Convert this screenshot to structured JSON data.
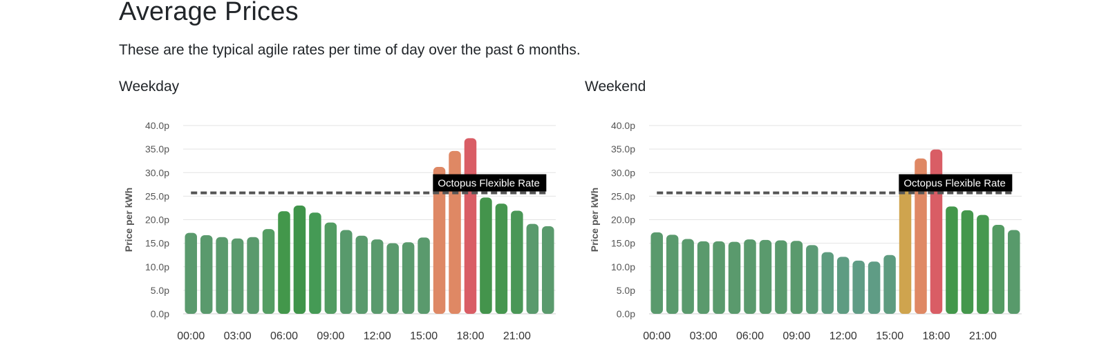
{
  "page": {
    "title": "Average Prices",
    "subtitle": "These are the typical agile rates per time of day over the past 6 months."
  },
  "chart_data": [
    {
      "type": "bar",
      "title": "Weekday",
      "ylabel": "Price per kWh",
      "ylim": [
        0,
        40
      ],
      "yticks": [
        "0.0p",
        "5.0p",
        "10.0p",
        "15.0p",
        "20.0p",
        "25.0p",
        "30.0p",
        "35.0p",
        "40.0p"
      ],
      "xticks": [
        "00:00",
        "03:00",
        "06:00",
        "09:00",
        "12:00",
        "15:00",
        "18:00",
        "21:00"
      ],
      "categories": [
        "00:00",
        "01:00",
        "02:00",
        "03:00",
        "04:00",
        "05:00",
        "06:00",
        "07:00",
        "08:00",
        "09:00",
        "10:00",
        "11:00",
        "12:00",
        "13:00",
        "14:00",
        "15:00",
        "16:00",
        "17:00",
        "18:00",
        "19:00",
        "20:00",
        "21:00",
        "22:00",
        "23:00"
      ],
      "values": [
        17.2,
        16.7,
        16.3,
        16.0,
        16.3,
        18.0,
        21.8,
        23.0,
        21.5,
        19.4,
        17.8,
        16.6,
        15.8,
        15.0,
        15.2,
        16.2,
        31.2,
        34.6,
        37.3,
        24.7,
        23.4,
        21.9,
        19.1,
        18.6
      ],
      "colors": [
        "#5a9a6d",
        "#5a9a6d",
        "#5a9a6d",
        "#5a9a6d",
        "#5a9a6d",
        "#549d63",
        "#43974b",
        "#3f944a",
        "#459a55",
        "#529c62",
        "#589a6c",
        "#5a9a6d",
        "#5a9a6d",
        "#5a9a6d",
        "#5a9a6d",
        "#5a9a6d",
        "#de8865",
        "#df8864",
        "#d95d65",
        "#44944c",
        "#46964f",
        "#4a9757",
        "#5a9a6d",
        "#5a9a6d"
      ],
      "reference_line": {
        "label": "Octopus Flexible Rate",
        "value": 25.7,
        "color": "#555555"
      }
    },
    {
      "type": "bar",
      "title": "Weekend",
      "ylabel": "Price per kWh",
      "ylim": [
        0,
        40
      ],
      "yticks": [
        "0.0p",
        "5.0p",
        "10.0p",
        "15.0p",
        "20.0p",
        "25.0p",
        "30.0p",
        "35.0p",
        "40.0p"
      ],
      "xticks": [
        "00:00",
        "03:00",
        "06:00",
        "09:00",
        "12:00",
        "15:00",
        "18:00",
        "21:00"
      ],
      "categories": [
        "00:00",
        "01:00",
        "02:00",
        "03:00",
        "04:00",
        "05:00",
        "06:00",
        "07:00",
        "08:00",
        "09:00",
        "10:00",
        "11:00",
        "12:00",
        "13:00",
        "14:00",
        "15:00",
        "16:00",
        "17:00",
        "18:00",
        "19:00",
        "20:00",
        "21:00",
        "22:00",
        "23:00"
      ],
      "values": [
        17.3,
        16.8,
        15.9,
        15.4,
        15.4,
        15.3,
        15.8,
        15.7,
        15.6,
        15.5,
        14.6,
        13.1,
        12.1,
        11.3,
        11.1,
        12.5,
        27.8,
        33.0,
        34.9,
        22.8,
        22.0,
        21.0,
        18.9,
        17.8
      ],
      "colors": [
        "#5a9a6d",
        "#5a9a6d",
        "#5a9a6d",
        "#5a9a6d",
        "#5a9a6d",
        "#5a9a6d",
        "#5a9a6d",
        "#5a9a6d",
        "#5a9a6d",
        "#5a9a6d",
        "#5c9b76",
        "#5e9c7f",
        "#5e9c82",
        "#5f9c85",
        "#5f9c85",
        "#5e9c80",
        "#cfa44e",
        "#df8864",
        "#d95d65",
        "#43974b",
        "#44974c",
        "#46984f",
        "#549b63",
        "#589a6b"
      ],
      "reference_line": {
        "label": "Octopus Flexible Rate",
        "value": 25.7,
        "color": "#555555"
      }
    }
  ]
}
